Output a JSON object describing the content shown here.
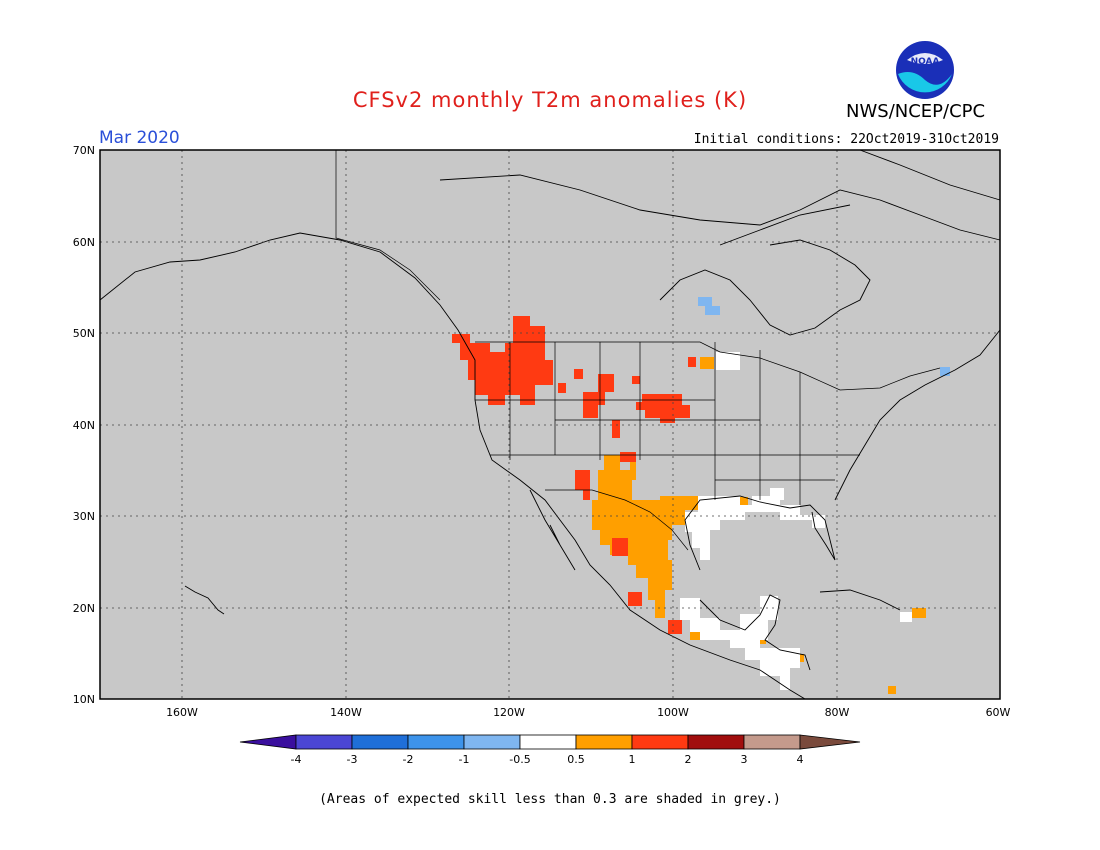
{
  "header": {
    "title": "CFSv2 monthly T2m anomalies (K)",
    "organization": "NWS/NCEP/CPC",
    "month": "Mar 2020",
    "initial_conditions": "Initial conditions: 22Oct2019-31Oct2019"
  },
  "logo": {
    "text": "NOAA",
    "icon": "noaa-logo-icon"
  },
  "map": {
    "lon_range": [
      -172,
      -60
    ],
    "lat_range": [
      10,
      70
    ],
    "lat_ticks": [
      "70N",
      "60N",
      "50N",
      "40N",
      "30N",
      "20N",
      "10N"
    ],
    "lon_ticks": [
      "160W",
      "140W",
      "120W",
      "100W",
      "80W",
      "60W"
    ],
    "grid": true,
    "background_color": "#c8c8c8"
  },
  "colorbar": {
    "labels": [
      "-4",
      "-3",
      "-2",
      "-1",
      "-0.5",
      "0.5",
      "1",
      "2",
      "3",
      "4"
    ],
    "colors": [
      "#3a0f9e",
      "#4b46d4",
      "#1f6fd8",
      "#3d93ea",
      "#7fb6f0",
      "#ffffff",
      "#ff9f00",
      "#ff3a12",
      "#a10e0e",
      "#c49a8c",
      "#7a4a3c"
    ]
  },
  "footnote": "(Areas of expected skill less than 0.3 are shaded in grey.)"
}
